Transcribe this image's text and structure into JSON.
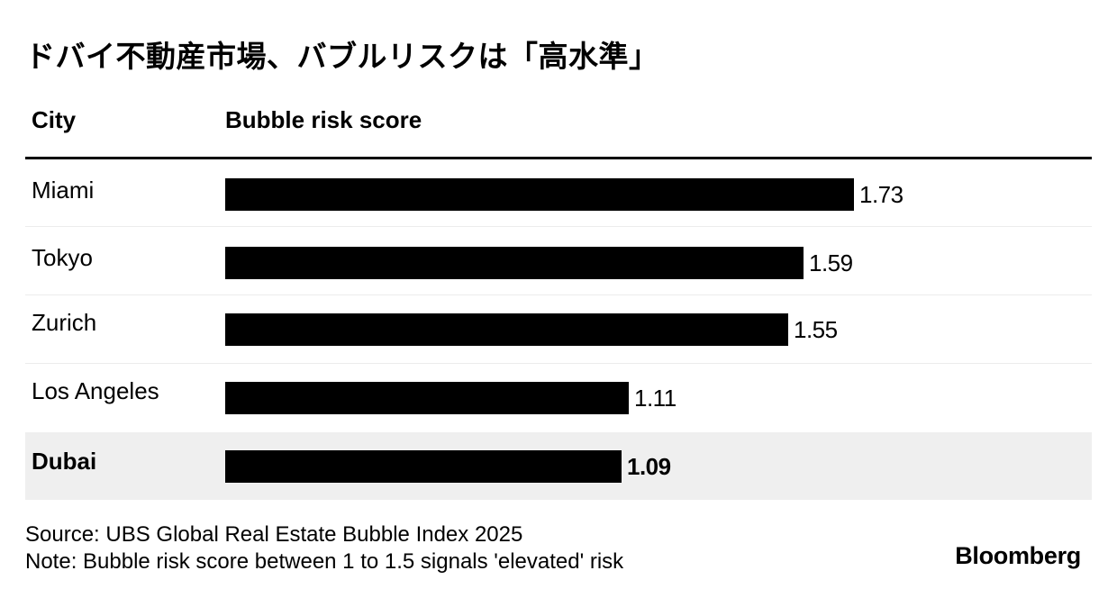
{
  "title": "ドバイ不動産市場、バブルリスクは「高水準」",
  "headers": {
    "city": "City",
    "score": "Bubble risk score"
  },
  "chart_data": {
    "type": "bar",
    "orientation": "horizontal",
    "title": "ドバイ不動産市場、バブルリスクは「高水準」",
    "xlabel": "Bubble risk score",
    "ylabel": "City",
    "categories": [
      "Miami",
      "Tokyo",
      "Zurich",
      "Los Angeles",
      "Dubai"
    ],
    "values": [
      1.73,
      1.59,
      1.55,
      1.11,
      1.09
    ],
    "value_labels": [
      "1.73",
      "1.59",
      "1.55",
      "1.11",
      "1.09"
    ],
    "highlighted": "Dubai",
    "bar_color": "#000000",
    "highlight_row_color": "#efefef",
    "xlim": [
      0,
      1.73
    ],
    "grid": false,
    "legend": "none"
  },
  "source": "Source: UBS Global Real Estate Bubble Index 2025",
  "note": "Note: Bubble risk score between 1 to 1.5 signals 'elevated' risk",
  "brand": "Bloomberg"
}
